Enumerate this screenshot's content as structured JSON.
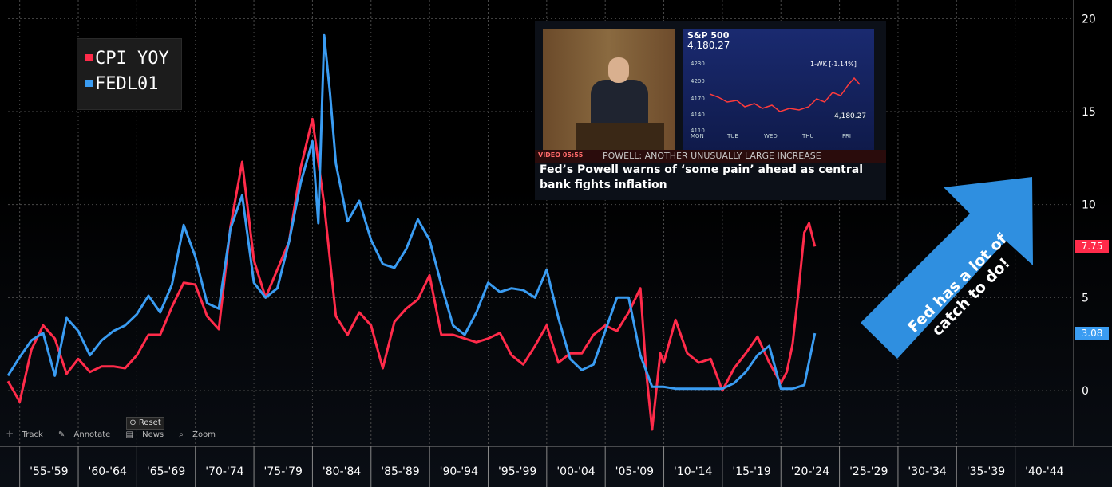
{
  "chart_data": {
    "type": "line",
    "series": [
      {
        "name": "CPI YOY",
        "color": "#ff2b4a",
        "x": [
          1954,
          1955,
          1956,
          1957,
          1958,
          1959,
          1960,
          1961,
          1962,
          1963,
          1964,
          1965,
          1966,
          1967,
          1968,
          1969,
          1970,
          1971,
          1972,
          1973,
          1974,
          1975,
          1976,
          1977,
          1978,
          1979,
          1980,
          1981,
          1982,
          1983,
          1984,
          1985,
          1986,
          1987,
          1988,
          1989,
          1990,
          1991,
          1992,
          1993,
          1994,
          1995,
          1996,
          1997,
          1998,
          1999,
          2000,
          2001,
          2002,
          2003,
          2004,
          2005,
          2006,
          2007,
          2008,
          2008.5,
          2009,
          2009.7,
          2010,
          2011,
          2012,
          2013,
          2014,
          2015,
          2016,
          2017,
          2018,
          2019,
          2020,
          2020.5,
          2021,
          2021.5,
          2022,
          2022.4,
          2022.9
        ],
        "values": [
          0.5,
          -0.6,
          2.2,
          3.5,
          2.8,
          0.9,
          1.7,
          1.0,
          1.3,
          1.3,
          1.2,
          1.9,
          3.0,
          3.0,
          4.5,
          5.8,
          5.7,
          4.0,
          3.3,
          8.8,
          12.3,
          7.0,
          5.0,
          6.5,
          8.0,
          12.0,
          14.6,
          10.0,
          4.0,
          3.0,
          4.2,
          3.5,
          1.2,
          3.7,
          4.4,
          4.9,
          6.2,
          3.0,
          3.0,
          2.8,
          2.6,
          2.8,
          3.1,
          1.9,
          1.4,
          2.4,
          3.5,
          1.5,
          2.0,
          2.0,
          3.0,
          3.5,
          3.2,
          4.2,
          5.5,
          1.0,
          -2.1,
          2.0,
          1.5,
          3.8,
          2.0,
          1.5,
          1.7,
          0.0,
          1.2,
          2.0,
          2.9,
          1.5,
          0.4,
          1.0,
          2.5,
          5.3,
          8.5,
          9.0,
          7.75
        ]
      },
      {
        "name": "FEDL01",
        "color": "#3a9cf2",
        "x": [
          1954,
          1955,
          1956,
          1957,
          1958,
          1959,
          1960,
          1961,
          1962,
          1963,
          1964,
          1965,
          1966,
          1967,
          1968,
          1969,
          1970,
          1971,
          1972,
          1973,
          1974,
          1975,
          1976,
          1977,
          1978,
          1979,
          1980,
          1980.5,
          1981,
          1981.5,
          1982,
          1983,
          1984,
          1985,
          1986,
          1987,
          1988,
          1989,
          1990,
          1991,
          1992,
          1993,
          1994,
          1995,
          1996,
          1997,
          1998,
          1999,
          2000,
          2001,
          2002,
          2003,
          2004,
          2005,
          2006,
          2007,
          2008,
          2009,
          2010,
          2011,
          2012,
          2013,
          2014,
          2015,
          2016,
          2017,
          2018,
          2019,
          2020,
          2021,
          2022,
          2022.9
        ],
        "values": [
          0.8,
          1.8,
          2.7,
          3.1,
          0.8,
          3.9,
          3.2,
          1.9,
          2.7,
          3.2,
          3.5,
          4.1,
          5.1,
          4.2,
          5.7,
          8.9,
          7.2,
          4.7,
          4.4,
          8.7,
          10.5,
          5.8,
          5.0,
          5.5,
          8.0,
          11.2,
          13.4,
          9.0,
          19.1,
          16.0,
          12.2,
          9.1,
          10.2,
          8.1,
          6.8,
          6.6,
          7.6,
          9.2,
          8.1,
          5.7,
          3.5,
          3.0,
          4.2,
          5.8,
          5.3,
          5.5,
          5.4,
          5.0,
          6.5,
          3.9,
          1.7,
          1.1,
          1.4,
          3.2,
          5.0,
          5.0,
          1.9,
          0.2,
          0.2,
          0.1,
          0.1,
          0.1,
          0.1,
          0.1,
          0.4,
          1.0,
          1.9,
          2.4,
          0.1,
          0.1,
          0.3,
          3.08
        ]
      }
    ],
    "x_categories": [
      "'55-'59",
      "'60-'64",
      "'65-'69",
      "'70-'74",
      "'75-'79",
      "'80-'84",
      "'85-'89",
      "'90-'94",
      "'95-'99",
      "'00-'04",
      "'05-'09",
      "'10-'14",
      "'15-'19",
      "'20-'24",
      "'25-'29",
      "'30-'34",
      "'35-'39",
      "'40-'44"
    ],
    "y_ticks": [
      0,
      5,
      10,
      15,
      20
    ],
    "ylim": [
      -3,
      21
    ],
    "xlim": [
      1954,
      2045
    ],
    "legend": [
      "CPI YOY",
      "FEDL01"
    ],
    "last_value_tags": [
      "7.75",
      "3.08"
    ],
    "annotation": "Fed has a lot of catch to do!",
    "background_color": "#000000",
    "grid_color": "#4a4a4a"
  },
  "toolbar": {
    "track": "Track",
    "annotate": "Annotate",
    "news": "News",
    "zoom": "Zoom",
    "reset": "Reset"
  },
  "news_clip": {
    "ticker": "S&P 500",
    "price": "4,180.27",
    "range_label": "1-WK  [-1.14%]",
    "last_price": "4,180.27",
    "y_ticks": [
      "4230",
      "4200",
      "4170",
      "4140",
      "4110"
    ],
    "x_ticks": [
      "MON",
      "TUE",
      "WED",
      "THU",
      "FRI"
    ],
    "strip_tag": "VIDEO 05:55",
    "strip_text": "POWELL: ANOTHER UNUSUALLY LARGE INCREASE",
    "headline": "Fed’s Powell warns of ‘some pain’ ahead as central bank fights inflation"
  }
}
